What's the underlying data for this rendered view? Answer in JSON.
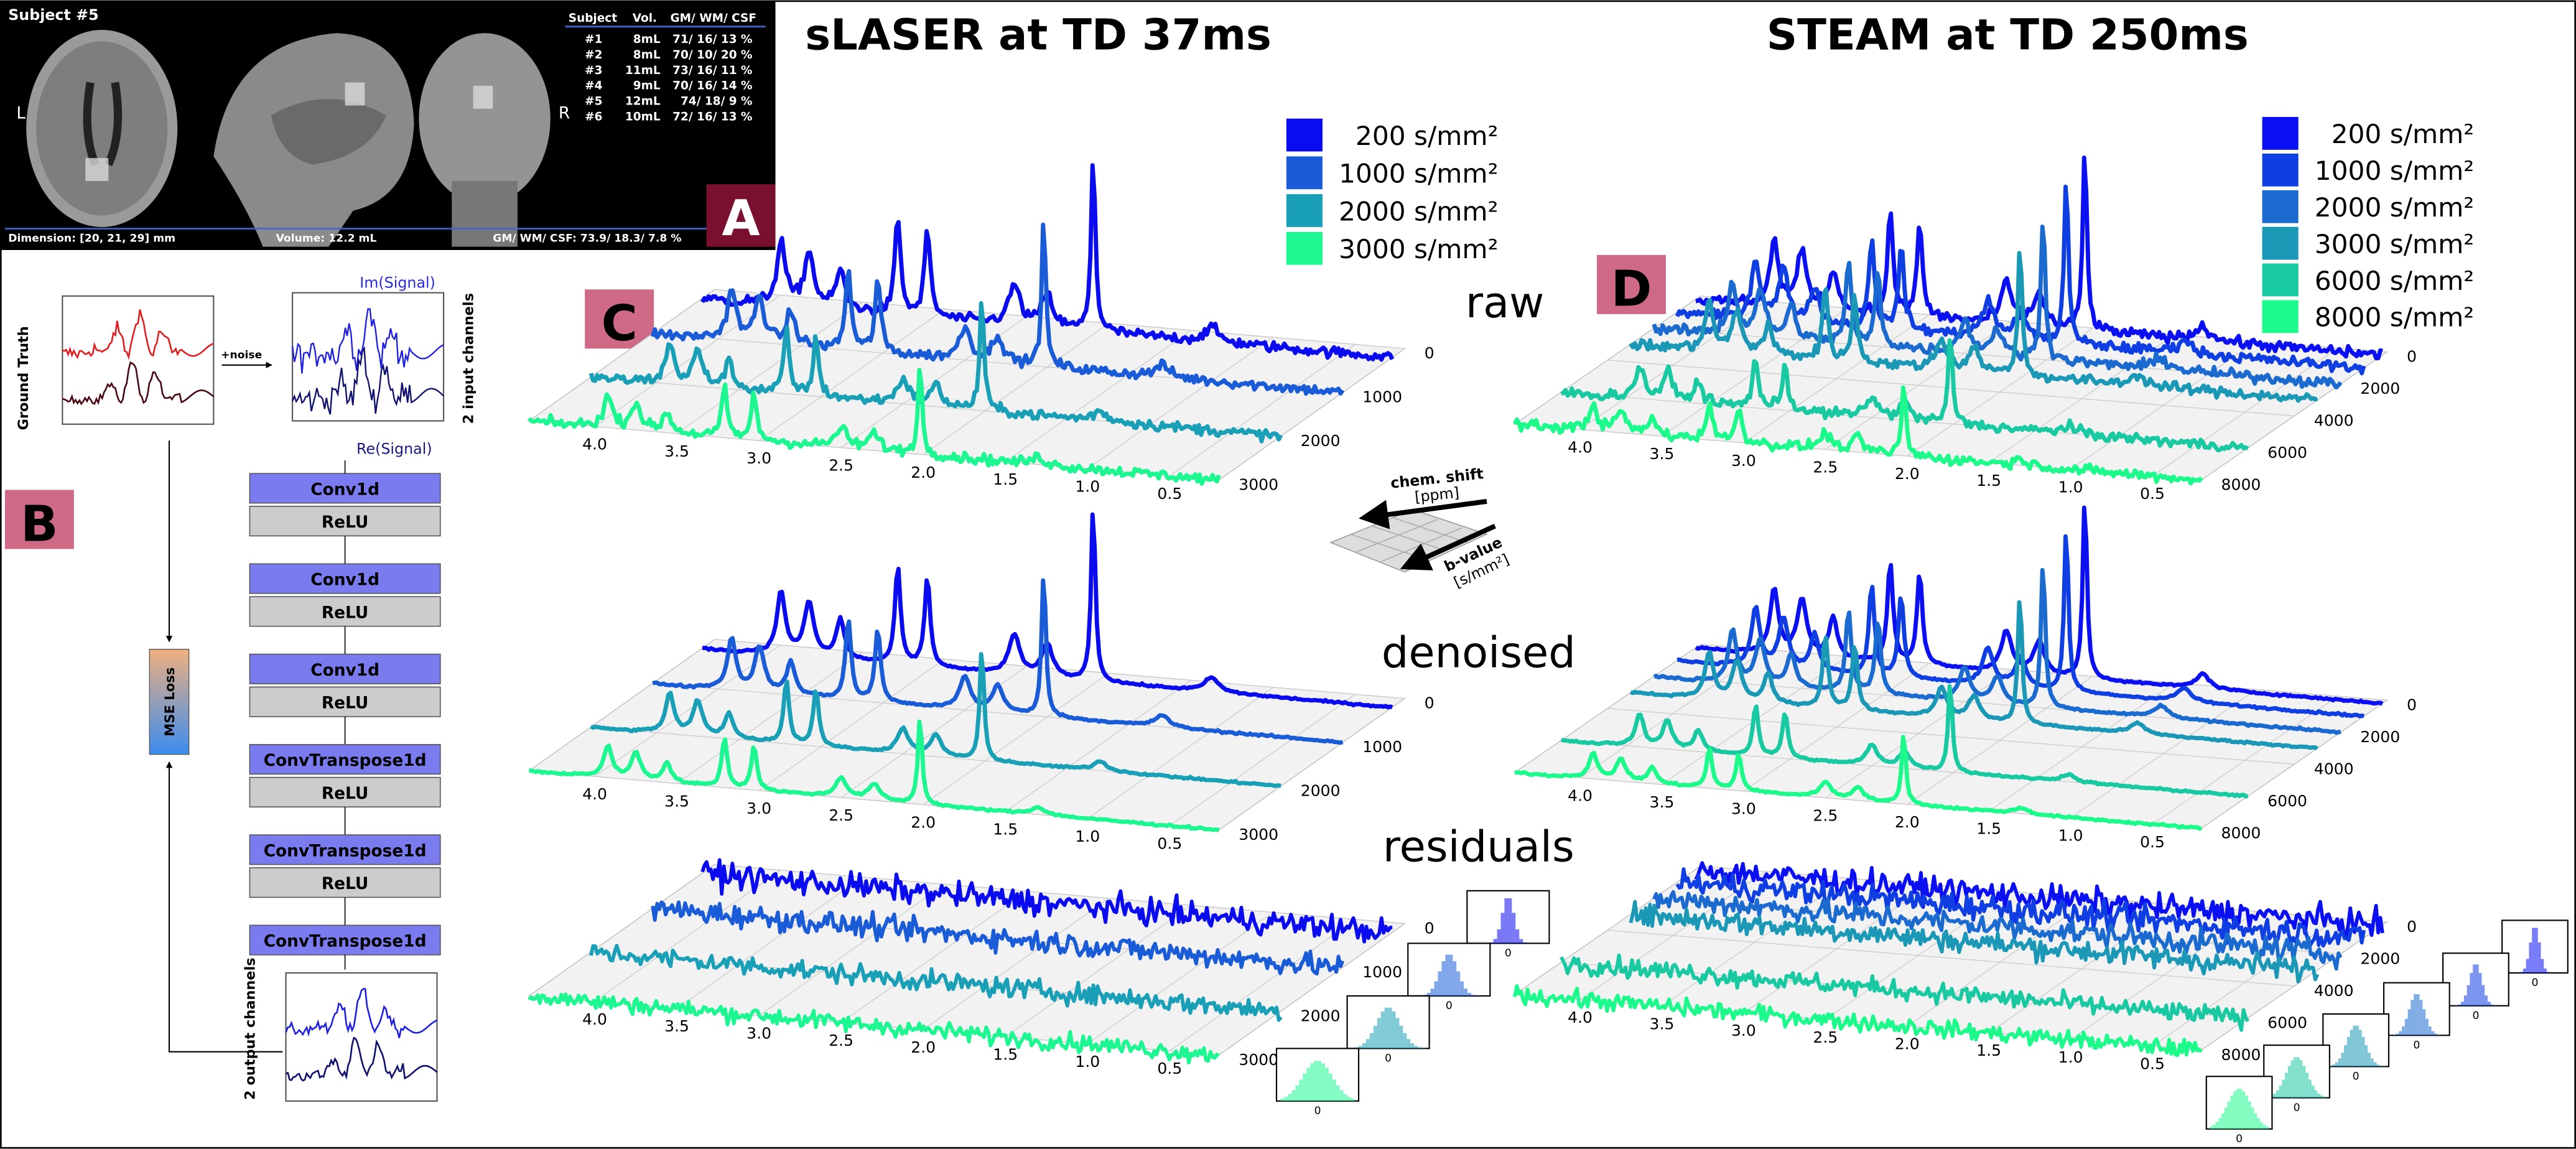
{
  "panel_a": {
    "label": "A",
    "subject": "Subject #5",
    "left": "L",
    "right": "R",
    "table": {
      "header": [
        "Subject",
        "Vol.",
        "GM/ WM/ CSF"
      ],
      "rows": [
        [
          "#1",
          "8mL",
          "71/ 16/ 13 %"
        ],
        [
          "#2",
          "8mL",
          "70/ 10/ 20 %"
        ],
        [
          "#3",
          "11mL",
          "73/ 16/ 11 %"
        ],
        [
          "#4",
          "9mL",
          "70/ 16/ 14 %"
        ],
        [
          "#5",
          "12mL",
          "74/ 18/   9 %"
        ],
        [
          "#6",
          "10mL",
          "72/ 16/ 13 %"
        ]
      ]
    },
    "footer": {
      "dimension": "Dimension:  [20, 21, 29] mm",
      "volume": "Volume:  12.2 mL",
      "composition": "GM/ WM/ CSF:  73.9/ 18.3/ 7.8 %"
    }
  },
  "panel_b": {
    "label": "B",
    "ground_truth": "Ground Truth",
    "noise": "+noise",
    "im": "Im(Signal)",
    "re": "Re(Signal)",
    "input": "2 input channels",
    "output": "2 output channels",
    "loss": "MSE Loss",
    "layers": [
      "Conv1d",
      "ReLU",
      "Conv1d",
      "ReLU",
      "Conv1d",
      "ReLU",
      "ConvTranspose1d",
      "ReLU",
      "ConvTranspose1d",
      "ReLU",
      "ConvTranspose1d"
    ]
  },
  "rows": [
    "raw",
    "denoised",
    "residuals"
  ],
  "axes_icon": {
    "x": "chem. shift",
    "x_unit": "[ppm]",
    "y": "b-value",
    "y_unit": "[s/mm²]"
  },
  "histogram_zero": "0",
  "ppm_ticks": [
    {
      "value": 4,
      "label": "4.0"
    },
    3.5,
    {
      "value": 3,
      "label": "3.0"
    },
    2.5,
    {
      "value": 2,
      "label": "2.0"
    },
    1.5,
    {
      "value": 1,
      "label": "1.0"
    },
    0.5
  ],
  "panel_c": {
    "label": "C",
    "title": "sLASER at TD 37ms",
    "b_ticks": [
      0,
      1000,
      2000,
      3000
    ],
    "series": [
      {
        "name": "200 s/mm²",
        "b": 200,
        "color": "#0b0bef"
      },
      {
        "name": "1000 s/mm²",
        "b": 1000,
        "color": "#1a5cd8"
      },
      {
        "name": "2000 s/mm²",
        "b": 2000,
        "color": "#1aa0b6"
      },
      {
        "name": "3000 s/mm²",
        "b": 3000,
        "color": "#1df791"
      }
    ]
  },
  "panel_d": {
    "label": "D",
    "title": "STEAM at TD 250ms",
    "b_ticks": [
      0,
      2000,
      4000,
      6000,
      8000
    ],
    "series": [
      {
        "name": "200 s/mm²",
        "b": 200,
        "color": "#0a10f2"
      },
      {
        "name": "1000 s/mm²",
        "b": 1000,
        "color": "#0f3ee2"
      },
      {
        "name": "2000 s/mm²",
        "b": 2000,
        "color": "#1a6ad0"
      },
      {
        "name": "3000 s/mm²",
        "b": 3000,
        "color": "#1a98b6"
      },
      {
        "name": "6000 s/mm²",
        "b": 6000,
        "color": "#19c9a2"
      },
      {
        "name": "8000 s/mm²",
        "b": 8000,
        "color": "#1cfa8c"
      }
    ]
  }
}
